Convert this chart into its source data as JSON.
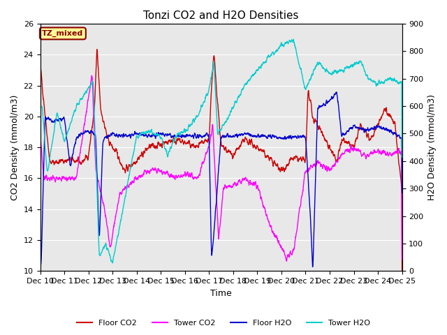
{
  "title": "Tonzi CO2 and H2O Densities",
  "xlabel": "Time",
  "ylabel_left": "CO2 Density (mmol/m3)",
  "ylabel_right": "H2O Density (mmol/m3)",
  "annotation_text": "TZ_mixed",
  "annotation_bg": "#FFFF99",
  "annotation_border": "#8B0000",
  "xlim_days": [
    10,
    25
  ],
  "ylim_co2": [
    10,
    26
  ],
  "ylim_h2o": [
    0,
    900
  ],
  "yticks_co2": [
    10,
    12,
    14,
    16,
    18,
    20,
    22,
    24,
    26
  ],
  "yticks_h2o": [
    0,
    100,
    200,
    300,
    400,
    500,
    600,
    700,
    800,
    900
  ],
  "xtick_labels": [
    "Dec 10",
    "Dec 11",
    "Dec 12",
    "Dec 13",
    "Dec 14",
    "Dec 15",
    "Dec 16",
    "Dec 17",
    "Dec 18",
    "Dec 19",
    "Dec 20",
    "Dec 21",
    "Dec 22",
    "Dec 23",
    "Dec 24",
    "Dec 25"
  ],
  "colors": {
    "floor_co2": "#CC0000",
    "tower_co2": "#FF00FF",
    "floor_h2o": "#0000CC",
    "tower_h2o": "#00CCCC"
  },
  "legend_labels": [
    "Floor CO2",
    "Tower CO2",
    "Floor H2O",
    "Tower H2O"
  ],
  "background_color": "#E8E8E8",
  "fig_background": "#FFFFFF",
  "grid_color": "#FFFFFF",
  "fontsize_title": 11,
  "fontsize_axis": 9,
  "fontsize_tick": 8,
  "fontsize_legend": 8,
  "linewidth": 1.0
}
